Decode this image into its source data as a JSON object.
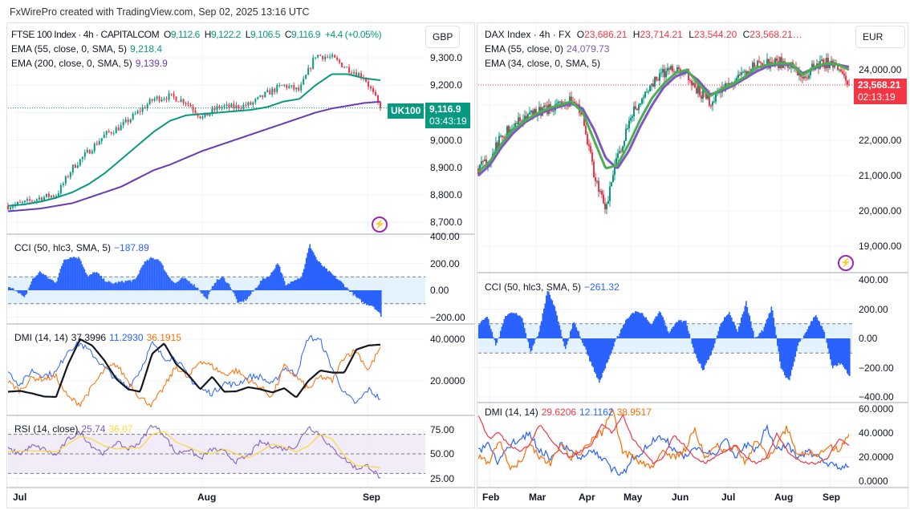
{
  "credit": "FxWirePro created with TradingView.com, Sep 02, 2025 13:16 UTC",
  "colors": {
    "up": "#089981",
    "down": "#f23645",
    "cci": "#2962ff"
  },
  "chart_data": [
    {
      "type": "candlestick",
      "symbol": "FTSE 100 Index · 4h · CAPITALCOM",
      "ohlc": {
        "o_label": "O",
        "o": "9,112.6",
        "h_label": "H",
        "h": "9,122.2",
        "l_label": "L",
        "l": "9,106.5",
        "c_label": "C",
        "c": "9,116.9",
        "change": "+4.4 (+0.05%)"
      },
      "currency": "GBP",
      "ticker_badge": "UK100",
      "last_price": "9,116.9",
      "countdown": "03:43:19",
      "last_value": 9116.9,
      "x_ticks": [
        "Jul",
        "Aug",
        "Sep"
      ],
      "price_axis": [
        "9,300.0",
        "9,200.0",
        "9,100.0",
        "9,000.0",
        "8,900.0",
        "8,800.0",
        "8,700.0"
      ],
      "close": [
        8760,
        8770,
        8790,
        8800,
        8900,
        8960,
        9020,
        9050,
        9100,
        9150,
        9160,
        9140,
        9080,
        9120,
        9120,
        9130,
        9170,
        9200,
        9180,
        9310,
        9300,
        9260,
        9230,
        9117
      ],
      "ema_a": {
        "label": "EMA (55, close, 0, SMA, 5)",
        "value": "9,218.4",
        "color": "#089981",
        "values": [
          8760,
          8765,
          8775,
          8790,
          8810,
          8840,
          8880,
          8930,
          8980,
          9030,
          9070,
          9090,
          9095,
          9100,
          9105,
          9110,
          9120,
          9140,
          9150,
          9200,
          9240,
          9240,
          9225,
          9218
        ]
      },
      "ema_b": {
        "label": "EMA (200, close, 0, SMA, 5)",
        "value": "9,139.9",
        "color": "#673ab7",
        "values": [
          8740,
          8745,
          8750,
          8760,
          8770,
          8790,
          8810,
          8830,
          8860,
          8890,
          8910,
          8935,
          8960,
          8980,
          9000,
          9020,
          9040,
          9060,
          9080,
          9100,
          9115,
          9125,
          9135,
          9140
        ]
      },
      "cci": {
        "label": "CCI (50, hlc3, SMA, 5)",
        "value": "−187.89",
        "axis": [
          "400.00",
          "200.00",
          "0.00",
          "−200.00"
        ],
        "values": [
          20,
          0,
          -60,
          80,
          140,
          90,
          60,
          230,
          250,
          240,
          100,
          140,
          80,
          50,
          60,
          70,
          75,
          200,
          240,
          230,
          120,
          50,
          90,
          60,
          10,
          -70,
          60,
          100,
          30,
          -100,
          -70,
          0,
          80,
          110,
          210,
          30,
          80,
          100,
          340,
          220,
          160,
          110,
          60,
          0,
          -60,
          -100,
          -115,
          -188
        ]
      },
      "dmi": {
        "label": "DMI (14, 14)",
        "axis": [
          "40.0000",
          "20.0000"
        ],
        "adx": {
          "value": "37.3996",
          "color": "#131722",
          "values": [
            14.8,
            15.2,
            14,
            12.5,
            12.3,
            28,
            40,
            37,
            30,
            21,
            16,
            14.8,
            33,
            38,
            28,
            23,
            16,
            22,
            14.8,
            15,
            17,
            16,
            14.5,
            16.5,
            12,
            20,
            25,
            24,
            24,
            35,
            37,
            37.4
          ]
        },
        "plus_di": {
          "value": "11.2930",
          "color": "#2962ff",
          "values": [
            24.5,
            18,
            25,
            22.6,
            24,
            35,
            38,
            33,
            26.5,
            21,
            17,
            25,
            38,
            31,
            31,
            22,
            16,
            14,
            19,
            18,
            22,
            22,
            18,
            26.5,
            23,
            41,
            39.4,
            26,
            14,
            9,
            16,
            11.3
          ]
        },
        "minus_di": {
          "value": "36.1915",
          "color": "#ff6d00",
          "values": [
            19.4,
            15.5,
            21.5,
            21,
            22,
            12,
            9,
            17,
            25,
            28,
            20,
            12,
            8.5,
            17,
            27,
            21.3,
            30,
            27,
            23,
            25,
            20.5,
            17,
            12.3,
            27,
            22,
            16,
            22,
            20,
            32,
            34.5,
            25,
            36.2
          ]
        }
      },
      "rsi": {
        "label": "RSI (14, close)",
        "value": "25.74",
        "ma_value": "36.07",
        "axis": [
          "75.00",
          "50.00",
          "25.00"
        ],
        "bands": [
          70,
          50,
          30
        ],
        "values": [
          55,
          50,
          58,
          55,
          48,
          65,
          72,
          58,
          50,
          62,
          55,
          62,
          80,
          70,
          50,
          55,
          45,
          55,
          52,
          42,
          48,
          62,
          58,
          55,
          58,
          78,
          70,
          55,
          45,
          35,
          38,
          25.7
        ],
        "ma": [
          52,
          53,
          53,
          53,
          52,
          60,
          68,
          65,
          58,
          55,
          56,
          56,
          70,
          73,
          62,
          57,
          52,
          50,
          55,
          50,
          46,
          52,
          60,
          57,
          52,
          58,
          70,
          65,
          48,
          38,
          37,
          36.1
        ]
      }
    },
    {
      "type": "candlestick",
      "symbol": "DAX Index · 4h · FX",
      "ohlc": {
        "o_label": "O",
        "o": "23,686.21",
        "h_label": "H",
        "h": "23,714.21",
        "l_label": "L",
        "l": "23,544.20",
        "c_label": "C",
        "c": "23,568.21…"
      },
      "currency": "EUR",
      "last_price": "23,568.21",
      "countdown": "02:13:19",
      "last_value": 23568.21,
      "x_ticks": [
        "Feb",
        "Mar",
        "Apr",
        "May",
        "Jun",
        "Jul",
        "Aug",
        "Sep"
      ],
      "price_axis": [
        "24,000.00",
        "23,000.00",
        "22,000.00",
        "21,000.00",
        "20,000.00",
        "19,000.00"
      ],
      "close": [
        21200,
        21500,
        22100,
        22500,
        22600,
        22800,
        22900,
        23000,
        23150,
        22700,
        21000,
        20000,
        21500,
        22500,
        23200,
        23600,
        23900,
        24100,
        23900,
        23400,
        23100,
        23500,
        23700,
        23900,
        24200,
        24200,
        24200,
        24200,
        23700,
        24100,
        24200,
        24100,
        23568
      ],
      "ema_a": {
        "label": "EMA (55, close, 0)",
        "value": "24,079.73",
        "color": "#7e57c2",
        "values": [
          21000,
          21300,
          21800,
          22200,
          22500,
          22700,
          22850,
          22950,
          23050,
          22900,
          22300,
          21500,
          21200,
          21700,
          22400,
          23000,
          23500,
          23800,
          23950,
          23700,
          23300,
          23400,
          23550,
          23750,
          23950,
          24100,
          24150,
          24150,
          23900,
          24050,
          24150,
          24150,
          24080
        ]
      },
      "ema_b": {
        "label": "EMA (34, close, 0, SMA, 5)",
        "value": "",
        "color": "#4caf50",
        "values": [
          21100,
          21400,
          21900,
          22300,
          22550,
          22750,
          22900,
          23000,
          23100,
          22800,
          22000,
          21200,
          21300,
          21900,
          22600,
          23200,
          23600,
          23900,
          24000,
          23600,
          23250,
          23450,
          23600,
          23800,
          24050,
          24150,
          24180,
          24180,
          23850,
          24080,
          24180,
          24150,
          24000
        ]
      },
      "cci": {
        "label": "CCI (50, hlc3, SMA, 5)",
        "value": "−261.32",
        "axis": [
          "400.00",
          "200.00",
          "0.00",
          "−200.00",
          "−400.00"
        ],
        "values": [
          100,
          150,
          -60,
          150,
          180,
          150,
          -100,
          50,
          340,
          180,
          -80,
          120,
          -20,
          -170,
          -300,
          -150,
          0,
          120,
          180,
          170,
          100,
          190,
          40,
          120,
          120,
          -100,
          -220,
          -100,
          100,
          180,
          50,
          250,
          0,
          60,
          220,
          -200,
          -300,
          -50,
          50,
          160,
          60,
          -200,
          -170,
          -261
        ]
      },
      "dmi": {
        "label": "DMI (14, 14)",
        "axis": [
          "60.0000",
          "40.0000",
          "20.0000",
          "0.0000"
        ],
        "adx": {
          "value": "29.6206",
          "color": "#f23645",
          "values": [
            55,
            35,
            40,
            30,
            25,
            30,
            48,
            35,
            25,
            20,
            25,
            30,
            48,
            40,
            55,
            35,
            25,
            15,
            20,
            38,
            30,
            20,
            15,
            20,
            25,
            30,
            20,
            15,
            20,
            40,
            25,
            18,
            15,
            15,
            20,
            35,
            29.6
          ]
        },
        "plus_di": {
          "value": "12.1162",
          "color": "#2962ff",
          "values": [
            25,
            30,
            15,
            30,
            35,
            40,
            25,
            20,
            30,
            25,
            20,
            25,
            20,
            10,
            5,
            20,
            25,
            35,
            38,
            25,
            20,
            30,
            25,
            20,
            35,
            20,
            30,
            25,
            45,
            25,
            30,
            20,
            25,
            20,
            15,
            12,
            12.1
          ]
        },
        "minus_di": {
          "value": "38.9517",
          "color": "#ff6d00",
          "values": [
            20,
            15,
            35,
            10,
            15,
            30,
            20,
            15,
            30,
            20,
            25,
            35,
            40,
            60,
            25,
            20,
            15,
            12,
            25,
            20,
            25,
            45,
            20,
            30,
            25,
            30,
            15,
            35,
            20,
            30,
            45,
            20,
            25,
            20,
            30,
            25,
            39
          ]
        }
      }
    }
  ]
}
